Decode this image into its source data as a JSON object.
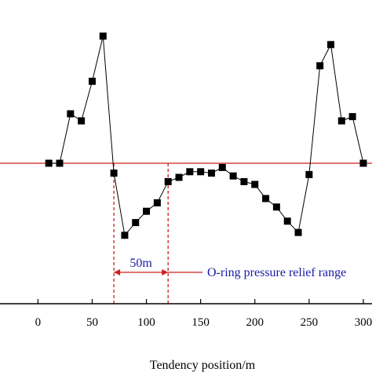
{
  "chart_data": {
    "type": "line",
    "xlabel": "Tendency position/m",
    "xlim": [
      -35,
      308
    ],
    "ylim": [
      -1.0,
      1.0
    ],
    "x_ticks": [
      {
        "value": 0,
        "label": "0"
      },
      {
        "value": 50,
        "label": "50"
      },
      {
        "value": 100,
        "label": "100"
      },
      {
        "value": 150,
        "label": "150"
      },
      {
        "value": 200,
        "label": "200"
      },
      {
        "value": 250,
        "label": "250"
      },
      {
        "value": 300,
        "label": "300"
      }
    ],
    "series": [
      {
        "x": [
          10,
          20,
          30,
          40,
          50,
          60,
          70,
          80,
          90,
          100,
          110,
          120,
          130,
          140,
          150,
          160,
          170,
          180,
          190,
          200,
          210,
          220,
          230,
          240,
          250,
          260,
          270,
          280,
          290,
          300
        ],
        "y": [
          0.0,
          0.0,
          0.35,
          0.3,
          0.58,
          0.9,
          -0.07,
          -0.51,
          -0.42,
          -0.34,
          -0.28,
          -0.13,
          -0.1,
          -0.06,
          -0.06,
          -0.07,
          -0.03,
          -0.09,
          -0.13,
          -0.15,
          -0.25,
          -0.31,
          -0.41,
          -0.49,
          -0.08,
          0.69,
          0.84,
          0.3,
          0.33,
          0.0
        ],
        "color": "#000000",
        "marker": "square"
      }
    ],
    "reference_line": {
      "y": 0,
      "color": "#cc1f1f"
    },
    "vertical_lines": [
      {
        "x": 70,
        "color": "#cc1f1f",
        "style": "dashed"
      },
      {
        "x": 120,
        "color": "#cc1f1f",
        "style": "dashed"
      }
    ],
    "annotations": {
      "span_label": "50m",
      "range_label": "O-ring pressure relief range",
      "color": "#1a1aa6"
    },
    "grid": false
  }
}
